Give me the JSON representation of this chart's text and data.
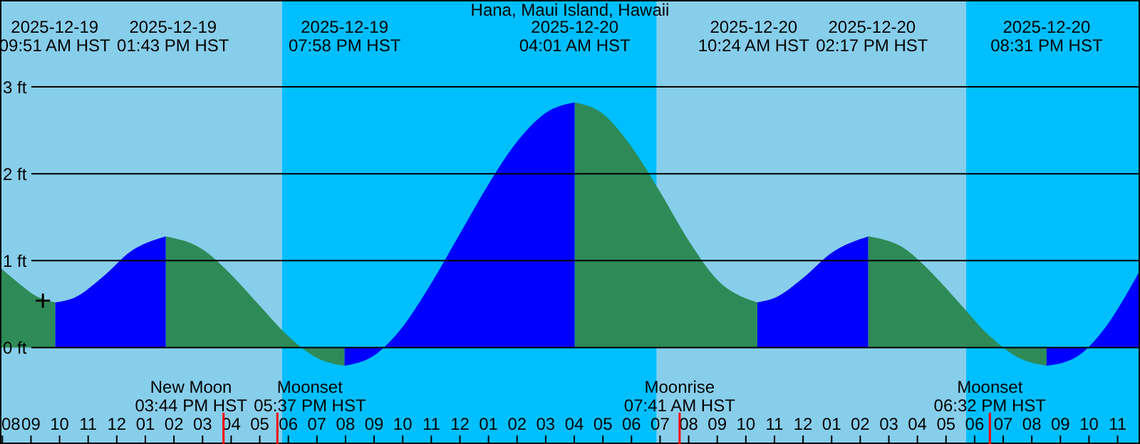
{
  "chart_data": {
    "type": "area",
    "title": "Hana, Maui Island, Hawaii",
    "xlim": [
      "2025-12-19T07:55",
      "2025-12-20T23:47"
    ],
    "ylim": [
      -1.11,
      4
    ],
    "xticks": [
      {
        "value": "2025-12-19T08:00",
        "label": "08"
      },
      {
        "value": "2025-12-19T09:00",
        "label": "09"
      },
      {
        "value": "2025-12-19T10:00",
        "label": "10"
      },
      {
        "value": "2025-12-19T11:00",
        "label": "11"
      },
      {
        "value": "2025-12-19T12:00",
        "label": "12"
      },
      {
        "value": "2025-12-19T13:00",
        "label": "01"
      },
      {
        "value": "2025-12-19T14:00",
        "label": "02"
      },
      {
        "value": "2025-12-19T15:00",
        "label": "03"
      },
      {
        "value": "2025-12-19T16:00",
        "label": "04"
      },
      {
        "value": "2025-12-19T17:00",
        "label": "05"
      },
      {
        "value": "2025-12-19T18:00",
        "label": "06"
      },
      {
        "value": "2025-12-19T19:00",
        "label": "07"
      },
      {
        "value": "2025-12-19T20:00",
        "label": "08"
      },
      {
        "value": "2025-12-19T21:00",
        "label": "09"
      },
      {
        "value": "2025-12-19T22:00",
        "label": "10"
      },
      {
        "value": "2025-12-19T23:00",
        "label": "11"
      },
      {
        "value": "2025-12-20T00:00",
        "label": "12"
      },
      {
        "value": "2025-12-20T01:00",
        "label": "01"
      },
      {
        "value": "2025-12-20T02:00",
        "label": "02"
      },
      {
        "value": "2025-12-20T03:00",
        "label": "03"
      },
      {
        "value": "2025-12-20T04:00",
        "label": "04"
      },
      {
        "value": "2025-12-20T05:00",
        "label": "05"
      },
      {
        "value": "2025-12-20T06:00",
        "label": "06"
      },
      {
        "value": "2025-12-20T07:00",
        "label": "07"
      },
      {
        "value": "2025-12-20T08:00",
        "label": "08"
      },
      {
        "value": "2025-12-20T09:00",
        "label": "09"
      },
      {
        "value": "2025-12-20T10:00",
        "label": "10"
      },
      {
        "value": "2025-12-20T11:00",
        "label": "11"
      },
      {
        "value": "2025-12-20T12:00",
        "label": "12"
      },
      {
        "value": "2025-12-20T13:00",
        "label": "01"
      },
      {
        "value": "2025-12-20T14:00",
        "label": "02"
      },
      {
        "value": "2025-12-20T15:00",
        "label": "03"
      },
      {
        "value": "2025-12-20T16:00",
        "label": "04"
      },
      {
        "value": "2025-12-20T17:00",
        "label": "05"
      },
      {
        "value": "2025-12-20T18:00",
        "label": "06"
      },
      {
        "value": "2025-12-20T19:00",
        "label": "07"
      },
      {
        "value": "2025-12-20T20:00",
        "label": "08"
      },
      {
        "value": "2025-12-20T21:00",
        "label": "09"
      },
      {
        "value": "2025-12-20T22:00",
        "label": "10"
      },
      {
        "value": "2025-12-20T23:00",
        "label": "11"
      }
    ],
    "yticks": [
      {
        "value": 0,
        "label": "0 ft"
      },
      {
        "value": 1,
        "label": "1 ft"
      },
      {
        "value": 2,
        "label": "2 ft"
      },
      {
        "value": 3,
        "label": "3 ft"
      }
    ],
    "grid": "y",
    "bands": [
      {
        "axis": "x",
        "from": "2025-12-19T07:55",
        "to": "2025-12-19T17:47",
        "color": "#87ceeb"
      },
      {
        "axis": "x",
        "from": "2025-12-19T17:47",
        "to": "2025-12-20T06:53",
        "color": "#00bfff"
      },
      {
        "axis": "x",
        "from": "2025-12-20T06:53",
        "to": "2025-12-20T17:42",
        "color": "#87ceeb"
      },
      {
        "axis": "x",
        "from": "2025-12-20T17:42",
        "to": "2025-12-20T23:47",
        "color": "#00bfff"
      }
    ],
    "series": [
      {
        "color": "#2e8b57",
        "x": [
          "2025-12-19T07:55",
          "2025-12-19T08:30",
          "2025-12-19T09:12",
          "2025-12-19T09:51"
        ],
        "values": [
          0.92,
          0.76,
          0.59,
          0.52
        ]
      },
      {
        "color": "#0000ff",
        "x": [
          "2025-12-19T09:51",
          "2025-12-19T10:30",
          "2025-12-19T11:30",
          "2025-12-19T12:30",
          "2025-12-19T13:43"
        ],
        "values": [
          0.52,
          0.57,
          0.81,
          1.11,
          1.28
        ]
      },
      {
        "color": "#2e8b57",
        "x": [
          "2025-12-19T13:43",
          "2025-12-19T15:00",
          "2025-12-19T16:00",
          "2025-12-19T17:00",
          "2025-12-19T18:00",
          "2025-12-19T19:00",
          "2025-12-19T19:58"
        ],
        "values": [
          1.28,
          1.13,
          0.84,
          0.48,
          0.13,
          -0.12,
          -0.21
        ]
      },
      {
        "color": "#0000ff",
        "x": [
          "2025-12-19T19:58",
          "2025-12-19T21:00",
          "2025-12-19T22:00",
          "2025-12-19T23:00",
          "2025-12-20T00:00",
          "2025-12-20T01:00",
          "2025-12-20T02:00",
          "2025-12-20T03:00",
          "2025-12-20T04:01"
        ],
        "values": [
          -0.21,
          -0.09,
          0.24,
          0.74,
          1.31,
          1.88,
          2.37,
          2.7,
          2.82
        ]
      },
      {
        "color": "#2e8b57",
        "x": [
          "2025-12-20T04:01",
          "2025-12-20T05:00",
          "2025-12-20T06:00",
          "2025-12-20T07:00",
          "2025-12-20T08:00",
          "2025-12-20T09:00",
          "2025-12-20T10:24"
        ],
        "values": [
          2.82,
          2.69,
          2.31,
          1.79,
          1.23,
          0.78,
          0.52
        ]
      },
      {
        "color": "#0000ff",
        "x": [
          "2025-12-20T10:24",
          "2025-12-20T11:00",
          "2025-12-20T12:00",
          "2025-12-20T13:00",
          "2025-12-20T14:17"
        ],
        "values": [
          0.52,
          0.57,
          0.8,
          1.09,
          1.28
        ]
      },
      {
        "color": "#2e8b57",
        "x": [
          "2025-12-20T14:17",
          "2025-12-20T15:30",
          "2025-12-20T16:30",
          "2025-12-20T17:30",
          "2025-12-20T18:30",
          "2025-12-20T19:30",
          "2025-12-20T20:31"
        ],
        "values": [
          1.28,
          1.15,
          0.86,
          0.5,
          0.14,
          -0.11,
          -0.21
        ]
      },
      {
        "color": "#0000ff",
        "x": [
          "2025-12-20T20:31",
          "2025-12-20T21:30",
          "2025-12-20T22:30",
          "2025-12-20T23:12",
          "2025-12-20T23:47"
        ],
        "values": [
          -0.21,
          -0.12,
          0.2,
          0.55,
          0.89
        ]
      },
      {
        "type": "scatter",
        "marker": "cross",
        "color": "#000000",
        "x": [
          "2025-12-19T09:25"
        ],
        "values": [
          0.54
        ]
      }
    ],
    "annotations": [
      "2025-12-19\n09:51 AM HST",
      "2025-12-19\n01:43 PM HST",
      "2025-12-19\n07:58 PM HST",
      "2025-12-20\n04:01 AM HST",
      "2025-12-20\n10:24 AM HST",
      "2025-12-20\n02:17 PM HST",
      "2025-12-20\n08:31 PM HST"
    ],
    "ref_lines": [
      {
        "axis": "x",
        "value": "2025-12-19T15:44",
        "label": "New Moon\n03:44 PM HST",
        "color": "#ff0000"
      },
      {
        "axis": "x",
        "value": "2025-12-19T17:37",
        "label": "Moonset\n05:37 PM HST",
        "color": "#ff0000"
      },
      {
        "axis": "x",
        "value": "2025-12-20T07:41",
        "label": "Moonrise\n07:41 AM HST",
        "color": "#ff0000"
      },
      {
        "axis": "x",
        "value": "2025-12-20T18:32",
        "label": "Moonset\n06:32 PM HST",
        "color": "#ff0000"
      }
    ]
  }
}
